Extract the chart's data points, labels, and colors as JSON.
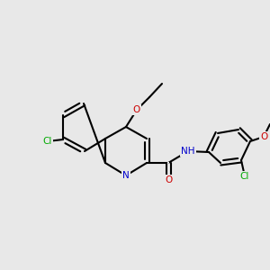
{
  "background_color": "#e8e8e8",
  "bond_color": "#000000",
  "bond_lw": 1.5,
  "atom_colors": {
    "C": "#000000",
    "N": "#0000cc",
    "O": "#cc0000",
    "Cl": "#00aa00",
    "H": "#000000"
  },
  "font_size": 7.5,
  "figsize": [
    3.0,
    3.0
  ],
  "dpi": 100
}
